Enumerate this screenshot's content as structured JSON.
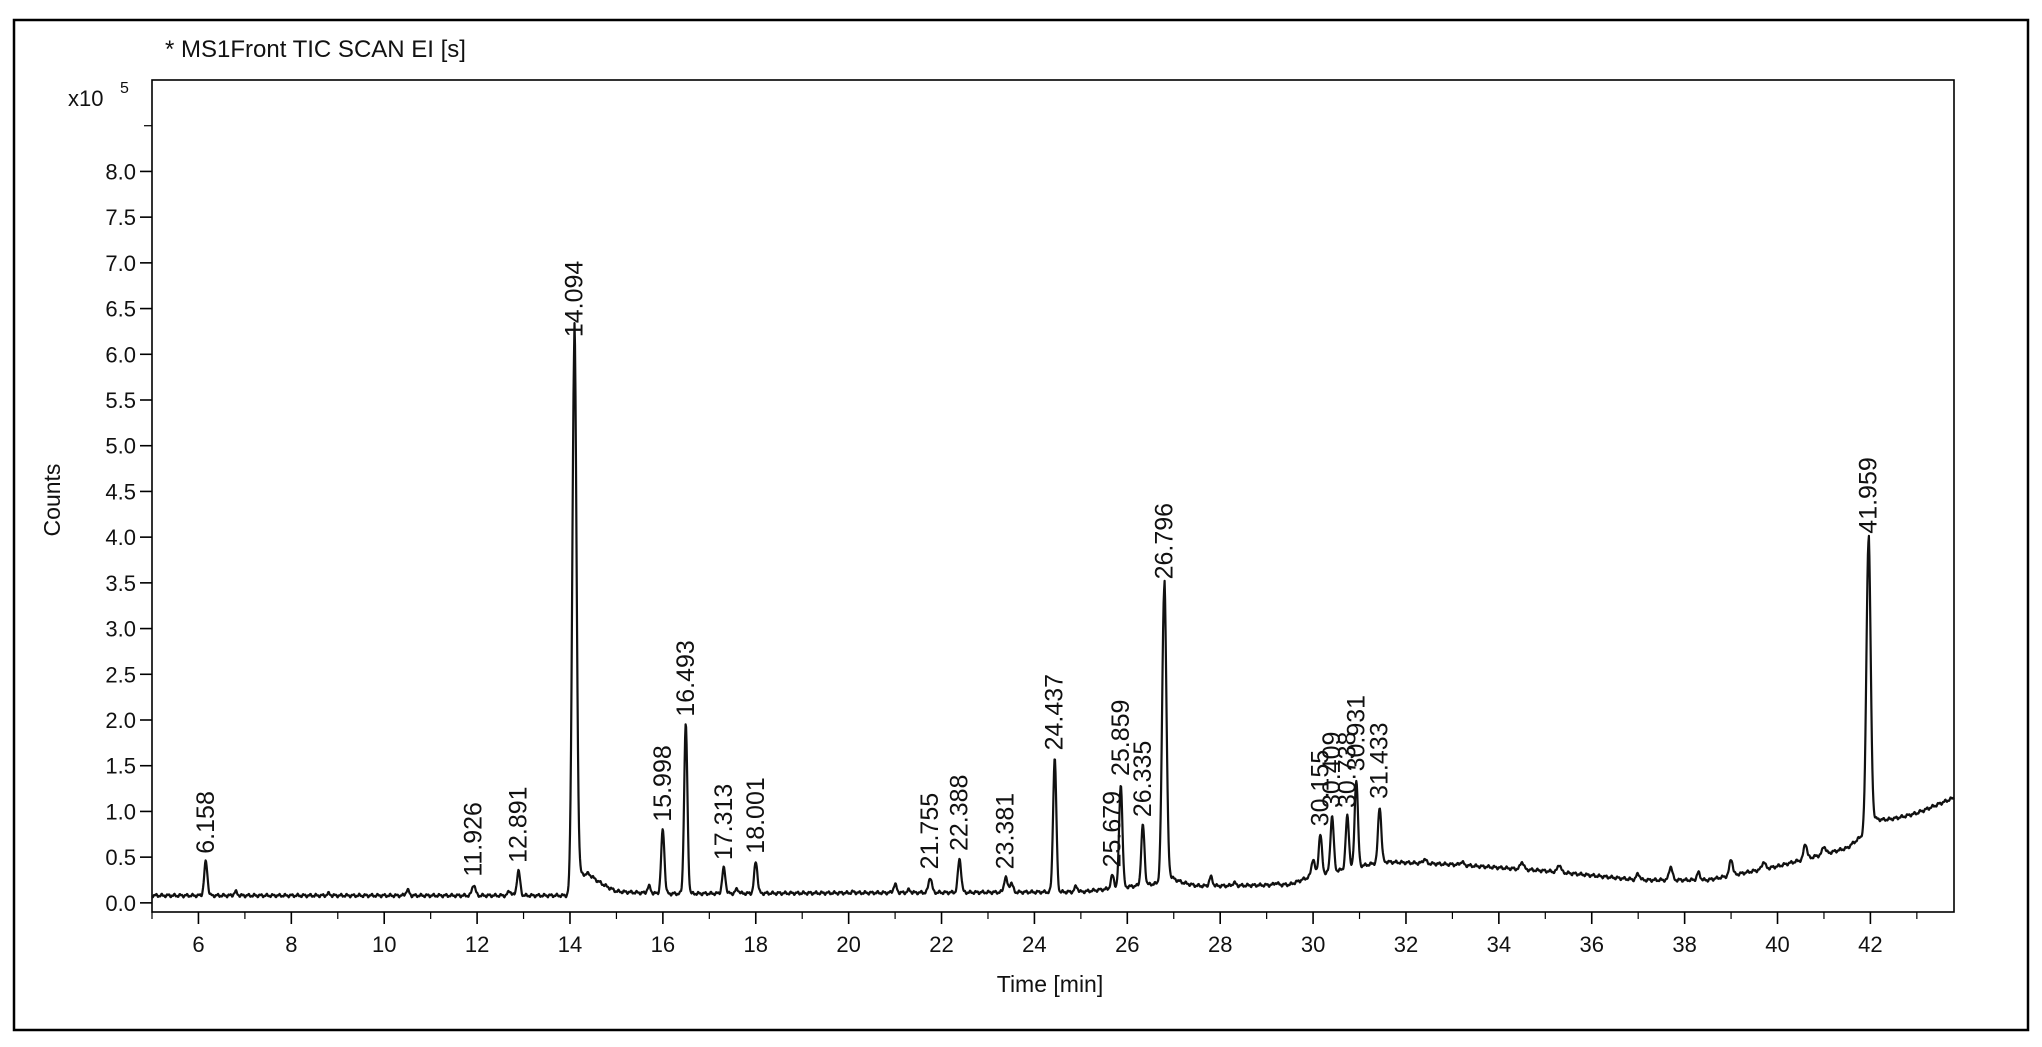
{
  "chart_data": {
    "type": "line",
    "title": "* MS1Front TIC SCAN EI [s]",
    "xlabel": "Time [min]",
    "ylabel": "Counts",
    "y_multiplier": "x10",
    "y_multiplier_exp": "5",
    "xlim": [
      5.0,
      43.8
    ],
    "ylim": [
      -0.1,
      9.0
    ],
    "x_ticks": [
      6,
      8,
      10,
      12,
      14,
      16,
      18,
      20,
      22,
      24,
      26,
      28,
      30,
      32,
      34,
      36,
      38,
      40,
      42
    ],
    "x_tick_labels": [
      "6",
      "8",
      "10",
      "12",
      "14",
      "16",
      "18",
      "20",
      "22",
      "24",
      "26",
      "28",
      "30",
      "32",
      "34",
      "36",
      "38",
      "40",
      "42"
    ],
    "y_ticks": [
      0.0,
      0.5,
      1.0,
      1.5,
      2.0,
      2.5,
      3.0,
      3.5,
      4.0,
      4.5,
      5.0,
      5.5,
      6.0,
      6.5,
      7.0,
      7.5,
      8.0
    ],
    "y_tick_labels": [
      "0.0",
      "0.5",
      "1.0",
      "1.5",
      "2.0",
      "2.5",
      "3.0",
      "3.5",
      "4.0",
      "4.5",
      "5.0",
      "5.5",
      "6.0",
      "6.5",
      "7.0",
      "7.5",
      "8.0"
    ],
    "grid": false,
    "baseline": [
      [
        5.0,
        0.08
      ],
      [
        14.0,
        0.08
      ],
      [
        14.4,
        0.25
      ],
      [
        15.0,
        0.12
      ],
      [
        16.0,
        0.1
      ],
      [
        25.0,
        0.12
      ],
      [
        26.8,
        0.22
      ],
      [
        27.5,
        0.18
      ],
      [
        29.5,
        0.2
      ],
      [
        30.0,
        0.3
      ],
      [
        31.5,
        0.45
      ],
      [
        33.0,
        0.42
      ],
      [
        35.0,
        0.35
      ],
      [
        37.0,
        0.25
      ],
      [
        38.5,
        0.25
      ],
      [
        40.0,
        0.4
      ],
      [
        41.5,
        0.6
      ],
      [
        42.1,
        0.85
      ],
      [
        43.0,
        0.98
      ],
      [
        43.8,
        1.15
      ]
    ],
    "peaks": [
      {
        "rt": 6.158,
        "height": 0.45,
        "label": "6.158"
      },
      {
        "rt": 11.926,
        "height": 0.2,
        "label": "11.926"
      },
      {
        "rt": 12.891,
        "height": 0.35,
        "label": "12.891"
      },
      {
        "rt": 14.094,
        "height": 6.1,
        "label": "14.094"
      },
      {
        "rt": 15.998,
        "height": 0.8,
        "label": "15.998"
      },
      {
        "rt": 16.493,
        "height": 1.95,
        "label": "16.493"
      },
      {
        "rt": 17.313,
        "height": 0.38,
        "label": "17.313"
      },
      {
        "rt": 18.001,
        "height": 0.45,
        "label": "18.001"
      },
      {
        "rt": 21.755,
        "height": 0.28,
        "label": "21.755"
      },
      {
        "rt": 22.388,
        "height": 0.48,
        "label": "22.388"
      },
      {
        "rt": 23.381,
        "height": 0.28,
        "label": "23.381"
      },
      {
        "rt": 24.437,
        "height": 1.58,
        "label": "24.437"
      },
      {
        "rt": 25.679,
        "height": 0.3,
        "label": "25.679"
      },
      {
        "rt": 25.859,
        "height": 1.3,
        "label": "25.859"
      },
      {
        "rt": 26.335,
        "height": 0.85,
        "label": "26.335"
      },
      {
        "rt": 26.796,
        "height": 3.45,
        "label": "26.796"
      },
      {
        "rt": 30.155,
        "height": 0.75,
        "label": "30.155"
      },
      {
        "rt": 30.409,
        "height": 0.95,
        "label": "30.409"
      },
      {
        "rt": 30.738,
        "height": 0.95,
        "label": "30.738"
      },
      {
        "rt": 30.931,
        "height": 1.35,
        "label": "30.931"
      },
      {
        "rt": 31.433,
        "height": 1.05,
        "label": "31.433"
      },
      {
        "rt": 41.959,
        "height": 3.95,
        "label": "41.959"
      }
    ],
    "minor_peaks": [
      {
        "rt": 6.8,
        "height": 0.12
      },
      {
        "rt": 8.8,
        "height": 0.1
      },
      {
        "rt": 10.5,
        "height": 0.14
      },
      {
        "rt": 12.7,
        "height": 0.13
      },
      {
        "rt": 15.7,
        "height": 0.18
      },
      {
        "rt": 17.6,
        "height": 0.15
      },
      {
        "rt": 19.2,
        "height": 0.1
      },
      {
        "rt": 20.1,
        "height": 0.12
      },
      {
        "rt": 21.0,
        "height": 0.2
      },
      {
        "rt": 21.3,
        "height": 0.14
      },
      {
        "rt": 23.5,
        "height": 0.22
      },
      {
        "rt": 24.9,
        "height": 0.18
      },
      {
        "rt": 27.8,
        "height": 0.28
      },
      {
        "rt": 28.3,
        "height": 0.22
      },
      {
        "rt": 29.2,
        "height": 0.22
      },
      {
        "rt": 30.0,
        "height": 0.48
      },
      {
        "rt": 32.4,
        "height": 0.48
      },
      {
        "rt": 33.2,
        "height": 0.45
      },
      {
        "rt": 34.5,
        "height": 0.45
      },
      {
        "rt": 35.3,
        "height": 0.42
      },
      {
        "rt": 37.0,
        "height": 0.32
      },
      {
        "rt": 37.7,
        "height": 0.4
      },
      {
        "rt": 38.3,
        "height": 0.33
      },
      {
        "rt": 39.0,
        "height": 0.48
      },
      {
        "rt": 39.7,
        "height": 0.45
      },
      {
        "rt": 40.6,
        "height": 0.65
      },
      {
        "rt": 41.0,
        "height": 0.62
      }
    ]
  }
}
